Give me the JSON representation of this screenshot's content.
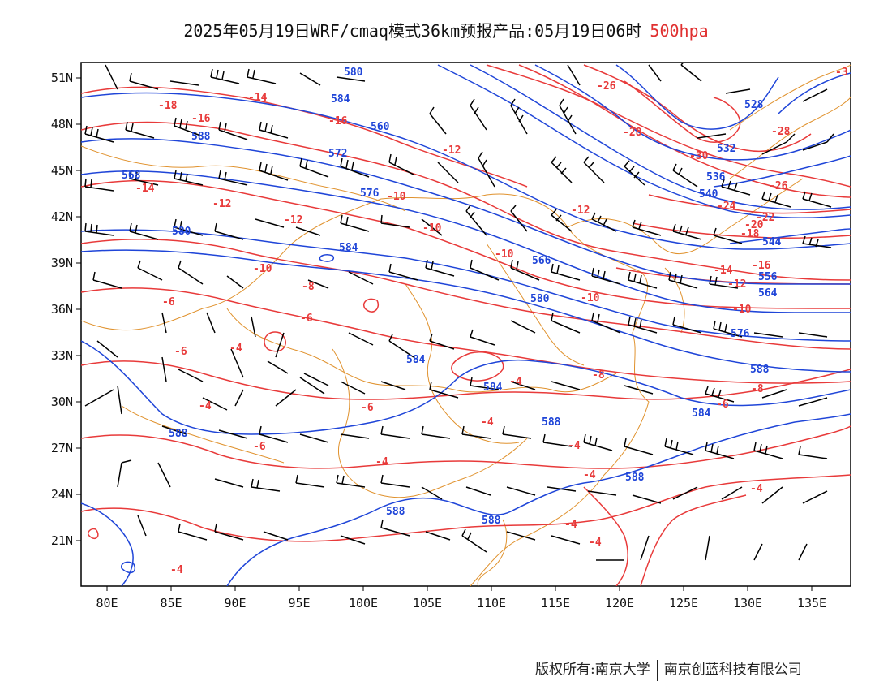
{
  "header": {
    "title": "2025年05月19日WRF/cmaq模式36km预报产品:05月19日06时",
    "level": "500hpa"
  },
  "footer": {
    "copyright": "版权所有:南京大学",
    "company": "南京创蓝科技有限公司"
  },
  "axes": {
    "lon_ticks": [
      "80E",
      "85E",
      "90E",
      "95E",
      "100E",
      "105E",
      "110E",
      "115E",
      "120E",
      "125E",
      "130E",
      "135E"
    ],
    "lat_ticks": [
      "51N",
      "48N",
      "45N",
      "42N",
      "39N",
      "36N",
      "33N",
      "30N",
      "27N",
      "24N",
      "21N"
    ]
  },
  "colors": {
    "height_contour": "#1f45d8",
    "temperature_contour": "#e83a3a",
    "coastline_border": "#e0922e",
    "wind_barb": "#000000",
    "level_label": "#e03030"
  },
  "height_labels": [
    "580",
    "584",
    "588",
    "560",
    "568",
    "572",
    "576",
    "580",
    "584",
    "588",
    "528",
    "532",
    "536",
    "540",
    "544",
    "556",
    "564",
    "566",
    "576",
    "580",
    "584",
    "588",
    "584",
    "588",
    "584",
    "588",
    "588",
    "588"
  ],
  "temperature_labels": [
    "-18",
    "-14",
    "-16",
    "-16",
    "-12",
    "-14",
    "-12",
    "-12",
    "-10",
    "-10",
    "-10",
    "-10",
    "-10",
    "-12",
    "-8",
    "-8",
    "-6",
    "-6",
    "-4",
    "-4",
    "-6",
    "-6",
    "-4",
    "-4",
    "-4",
    "-6",
    "-4",
    "-4",
    "-4",
    "-4",
    "-4",
    "-4",
    "-26",
    "-28",
    "-30",
    "-28",
    "-26",
    "-24",
    "-20",
    "-22",
    "-18",
    "-16",
    "-14",
    "-12",
    "-10",
    "-8",
    "-6",
    "-3"
  ]
}
